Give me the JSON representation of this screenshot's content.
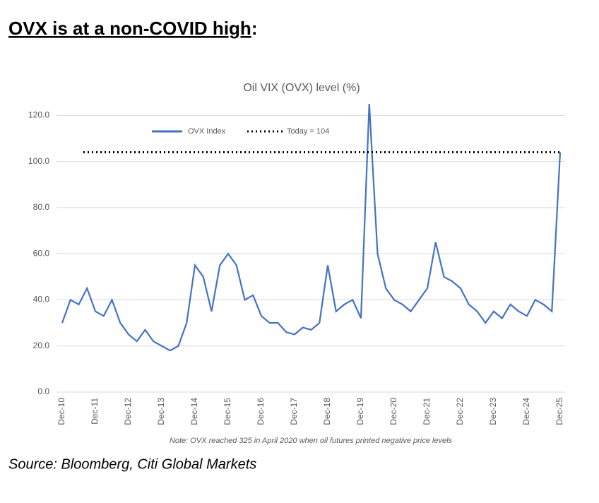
{
  "heading": {
    "text": "OVX is at a non-COVID high",
    "suffix": ":"
  },
  "chart_data": {
    "type": "line",
    "title": "Oil VIX (OVX) level (%)",
    "x": [
      "Dec-10",
      "Mar-11",
      "Jun-11",
      "Sep-11",
      "Dec-11",
      "Mar-12",
      "Jun-12",
      "Sep-12",
      "Dec-12",
      "Mar-13",
      "Jun-13",
      "Sep-13",
      "Dec-13",
      "Mar-14",
      "Jun-14",
      "Sep-14",
      "Dec-14",
      "Mar-15",
      "Jun-15",
      "Sep-15",
      "Dec-15",
      "Mar-16",
      "Jun-16",
      "Sep-16",
      "Dec-16",
      "Mar-17",
      "Jun-17",
      "Sep-17",
      "Dec-17",
      "Mar-18",
      "Jun-18",
      "Sep-18",
      "Dec-18",
      "Mar-19",
      "Jun-19",
      "Sep-19",
      "Dec-19",
      "Mar-20",
      "Jun-20",
      "Sep-20",
      "Dec-20",
      "Mar-21",
      "Jun-21",
      "Sep-21",
      "Dec-21",
      "Mar-22",
      "Jun-22",
      "Sep-22",
      "Dec-22",
      "Mar-23",
      "Jun-23",
      "Sep-23",
      "Dec-23",
      "Mar-24",
      "Jun-24",
      "Sep-24",
      "Dec-24",
      "Mar-25",
      "Jun-25",
      "Sep-25",
      "Dec-25"
    ],
    "series": [
      {
        "name": "OVX Index",
        "color": "#4472c4",
        "values": [
          30,
          40,
          38,
          45,
          35,
          33,
          40,
          30,
          25,
          22,
          27,
          22,
          20,
          18,
          20,
          30,
          55,
          50,
          35,
          55,
          60,
          55,
          40,
          42,
          33,
          30,
          30,
          26,
          25,
          28,
          27,
          30,
          55,
          35,
          38,
          40,
          32,
          125,
          60,
          45,
          40,
          38,
          35,
          40,
          45,
          65,
          50,
          48,
          45,
          38,
          35,
          30,
          35,
          32,
          38,
          35,
          33,
          40,
          38,
          35,
          104
        ]
      }
    ],
    "reference_line": {
      "name": "Today = 104",
      "value": 104,
      "color": "#000000"
    },
    "ylim": [
      0,
      125
    ],
    "yticks": [
      {
        "value": 0,
        "label": "0.0"
      },
      {
        "value": 20,
        "label": "20.0"
      },
      {
        "value": 40,
        "label": "40.0"
      },
      {
        "value": 60,
        "label": "60.0"
      },
      {
        "value": 80,
        "label": "80.0"
      },
      {
        "value": 100,
        "label": "100.0"
      },
      {
        "value": 120,
        "label": "120.0"
      }
    ],
    "xtick_every": 4,
    "note": "Note: OVX reached 325 in April 2020 when oil futures printed negative price levels"
  },
  "source": "Source: Bloomberg, Citi Global Markets"
}
